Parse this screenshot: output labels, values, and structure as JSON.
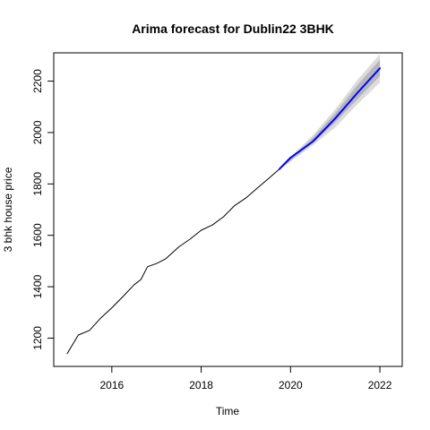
{
  "chart_data": {
    "type": "line",
    "title": "Arima forecast for Dublin22 3BHK",
    "xlabel": "Time",
    "ylabel": "3 bhk house price",
    "xlim": [
      2014.7,
      2022.5
    ],
    "ylim": [
      1090,
      2310
    ],
    "x_ticks": [
      2016,
      2018,
      2020,
      2022
    ],
    "x_tick_labels": [
      "2016",
      "2018",
      "2020",
      "2022"
    ],
    "y_ticks": [
      1200,
      1400,
      1600,
      1800,
      2000,
      2200
    ],
    "y_tick_labels": [
      "1200",
      "1400",
      "1600",
      "1800",
      "2000",
      "2200"
    ],
    "grid": false,
    "legend": "none",
    "series": [
      {
        "kind": "observed",
        "color": "#000000",
        "points": [
          [
            2015.0,
            1140
          ],
          [
            2015.25,
            1212
          ],
          [
            2015.5,
            1230
          ],
          [
            2015.75,
            1278
          ],
          [
            2016.0,
            1318
          ],
          [
            2016.25,
            1362
          ],
          [
            2016.5,
            1408
          ],
          [
            2016.65,
            1428
          ],
          [
            2016.8,
            1478
          ],
          [
            2017.0,
            1490
          ],
          [
            2017.2,
            1508
          ],
          [
            2017.5,
            1555
          ],
          [
            2017.75,
            1585
          ],
          [
            2018.0,
            1620
          ],
          [
            2018.25,
            1640
          ],
          [
            2018.5,
            1672
          ],
          [
            2018.75,
            1716
          ],
          [
            2019.0,
            1745
          ],
          [
            2019.25,
            1783
          ],
          [
            2019.5,
            1820
          ],
          [
            2019.6,
            1835
          ],
          [
            2019.75,
            1858
          ]
        ]
      },
      {
        "kind": "forecast",
        "color": "#0000ff",
        "points": [
          [
            2019.75,
            1858
          ],
          [
            2020.0,
            1902
          ],
          [
            2020.5,
            1965
          ],
          [
            2021.0,
            2055
          ],
          [
            2021.5,
            2155
          ],
          [
            2022.0,
            2250
          ]
        ]
      }
    ],
    "intervals": [
      {
        "level": "95%",
        "color": "#dbdbdb",
        "x": [
          2019.75,
          2020.5,
          2021.0,
          2021.5,
          2022.0
        ],
        "lower": [
          1856,
          1950,
          2020,
          2110,
          2195
        ],
        "upper": [
          1862,
          1990,
          2090,
          2205,
          2305
        ]
      },
      {
        "level": "80%",
        "color": "#b5b5be",
        "x": [
          2019.75,
          2020.5,
          2021.0,
          2021.5,
          2022.0
        ],
        "lower": [
          1857,
          1960,
          2040,
          2130,
          2220
        ],
        "upper": [
          1860,
          1980,
          2075,
          2185,
          2283
        ]
      }
    ]
  }
}
